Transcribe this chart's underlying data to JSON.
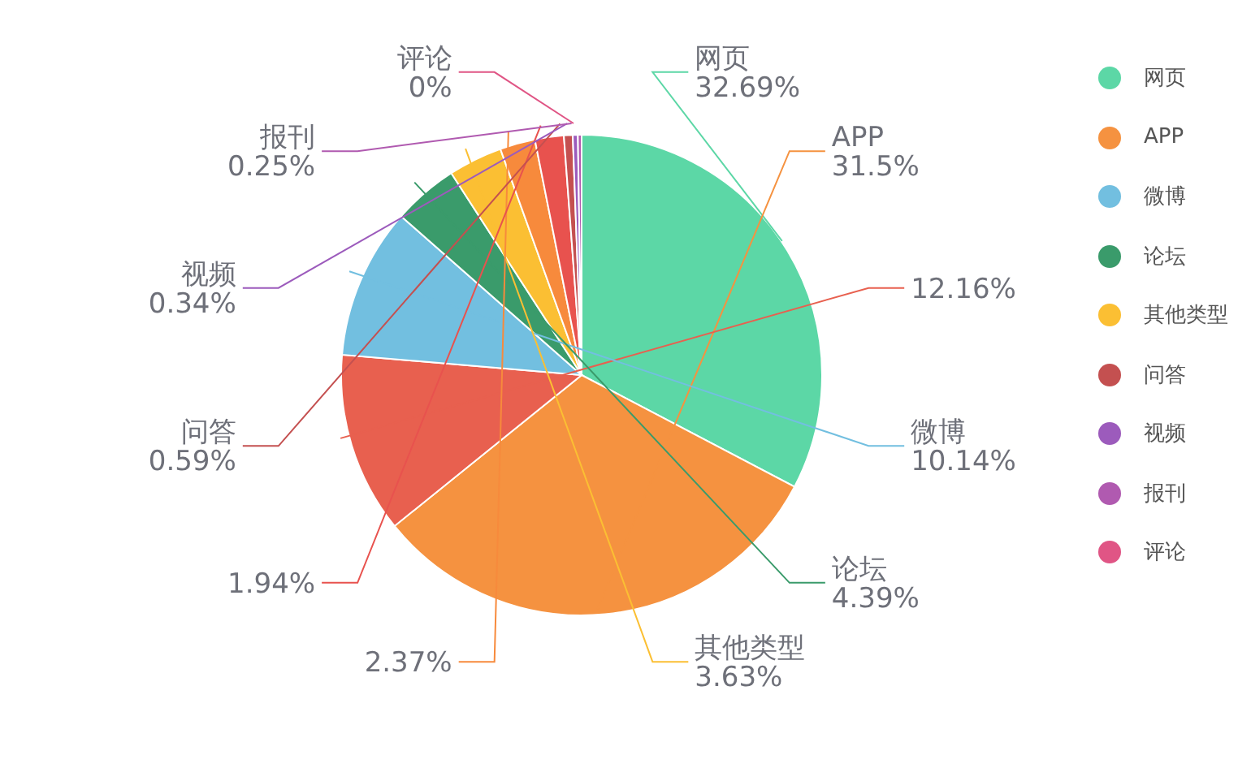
{
  "chart_data": {
    "type": "pie",
    "categories": [
      "网页",
      "APP",
      null,
      "微博",
      "论坛",
      "其他类型",
      null,
      null,
      "问答",
      "视频",
      "报刊",
      "评论"
    ],
    "values": [
      32.69,
      31.5,
      12.16,
      10.14,
      4.39,
      3.63,
      2.37,
      1.94,
      0.59,
      0.34,
      0.25,
      0
    ],
    "value_labels": [
      "32.69%",
      "31.5%",
      "12.16%",
      "10.14%",
      "4.39%",
      "3.63%",
      "2.37%",
      "1.94%",
      "0.59%",
      "0.34%",
      "0.25%",
      "0%"
    ],
    "colors": [
      "#5cd7a6",
      "#f59240",
      "#e8604f",
      "#72bfe0",
      "#3a9b6b",
      "#fbbf33",
      "#f78a3c",
      "#e8524e",
      "#c45050",
      "#9c5bbc",
      "#b05ab0",
      "#e05585"
    ],
    "legend": "right"
  }
}
